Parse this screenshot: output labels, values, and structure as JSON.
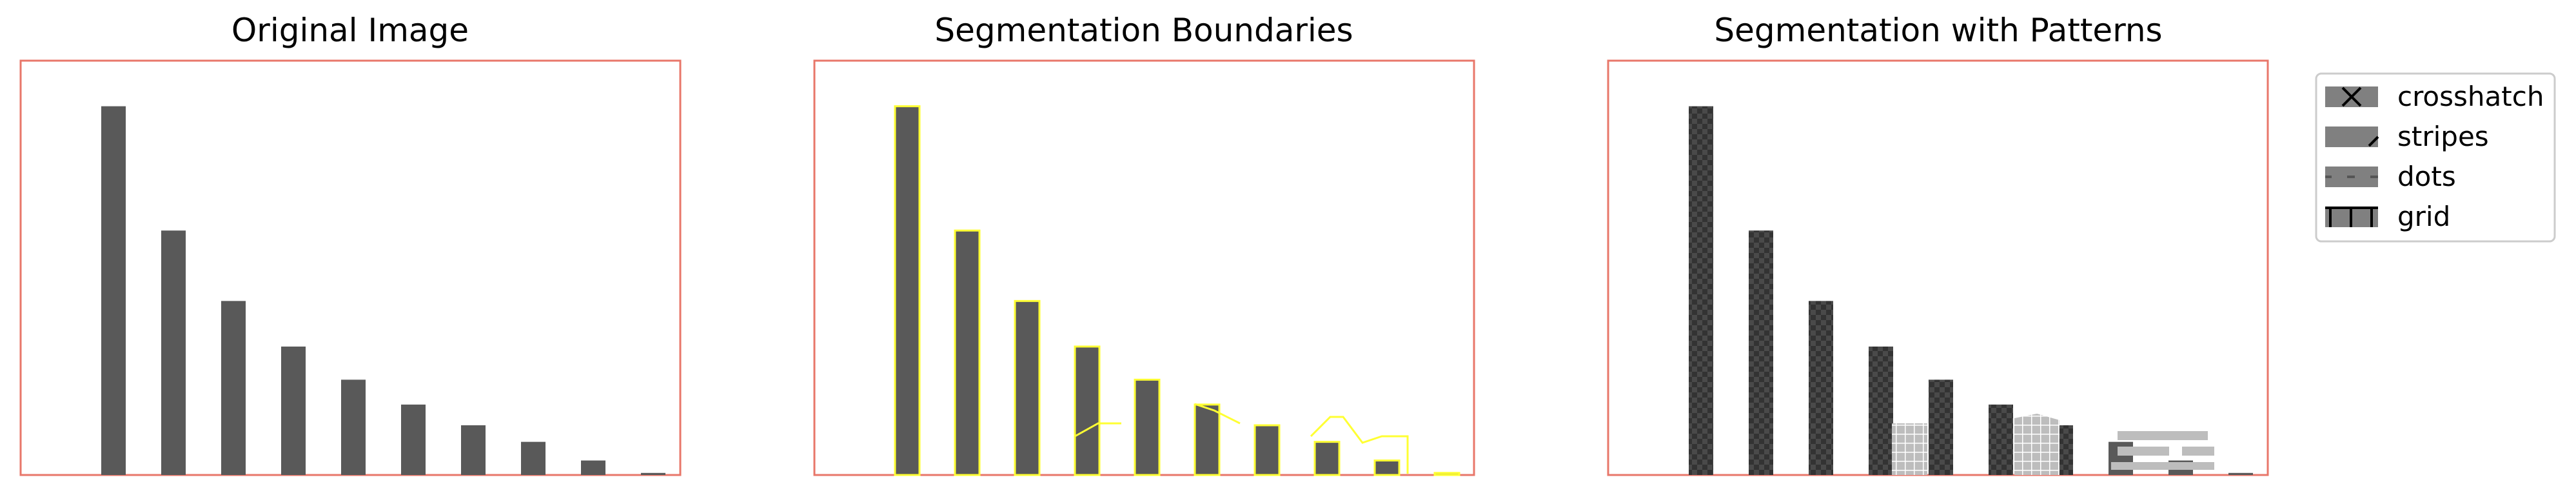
{
  "panels": [
    {
      "title": "Original Image"
    },
    {
      "title": "Segmentation Boundaries"
    },
    {
      "title": "Segmentation with Patterns"
    }
  ],
  "colors": {
    "frame": "#e8776a",
    "bar": "#595959",
    "boundary": "#ffff33",
    "pattern_light": "#bdbdbd",
    "legend_swatch": "#808080"
  },
  "bars": {
    "relative_heights": [
      0.89,
      0.59,
      0.42,
      0.31,
      0.23,
      0.17,
      0.12,
      0.08,
      0.035,
      0.005
    ]
  },
  "legend": {
    "items": [
      {
        "label": "crosshatch",
        "pattern": "crosshatch"
      },
      {
        "label": "stripes",
        "pattern": "stripes"
      },
      {
        "label": "dots",
        "pattern": "dots"
      },
      {
        "label": "grid",
        "pattern": "grid"
      }
    ]
  }
}
